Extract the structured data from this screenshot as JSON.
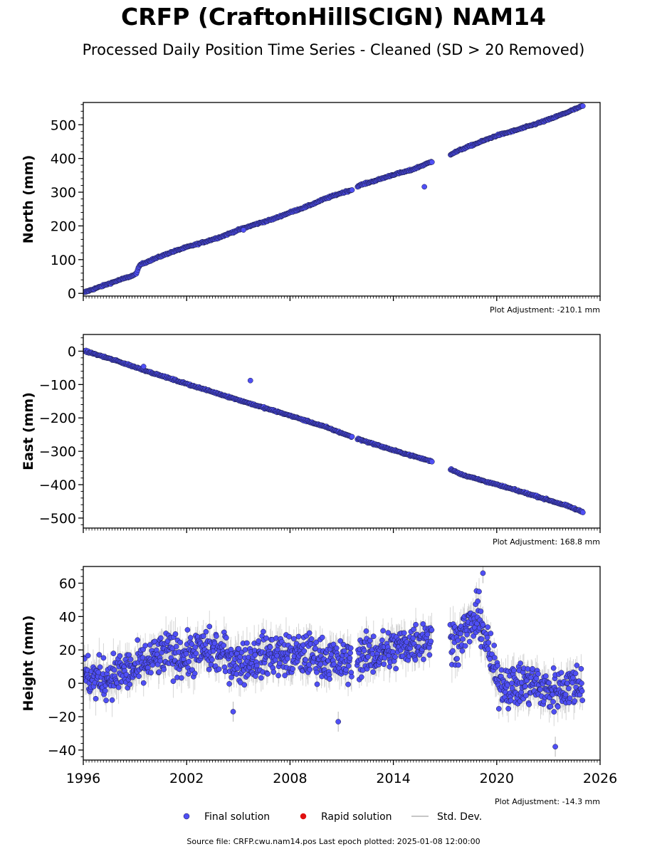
{
  "title": "CRFP (CraftonHillSCIGN) NAM14",
  "subtitle": "Processed Daily Position Time Series - Cleaned (SD > 20 Removed)",
  "footer": "Source file: CRFP.cwu.nam14.pos  Last epoch plotted: 2025-01-08 12:00:00",
  "colors": {
    "final": "#4f4ff5",
    "final_edge": "#1a1a40",
    "rapid": "#e01010",
    "stddev": "#b4b4b4",
    "axis": "#000000"
  },
  "legend": [
    {
      "label": "Final solution",
      "marker": "circle",
      "color": "#4f4ff5"
    },
    {
      "label": "Rapid solution",
      "marker": "circle",
      "color": "#e01010"
    },
    {
      "label": "Std. Dev.",
      "marker": "line",
      "color": "#b4b4b4"
    }
  ],
  "chart_data": [
    {
      "type": "scatter",
      "ylabel": "North (mm)",
      "xlim": [
        1996,
        2026
      ],
      "ylim": [
        -8,
        566
      ],
      "yticks": [
        0,
        100,
        200,
        300,
        400,
        500
      ],
      "xticks": [
        "1996",
        "2002",
        "2008",
        "2014",
        "2020",
        "2026"
      ],
      "show_xtick_labels": false,
      "adjustment": "Plot Adjustment: -210.1 mm",
      "gaps": [
        [
          2011.6,
          2011.9
        ],
        [
          2016.25,
          2017.3
        ]
      ],
      "series": [
        {
          "x": [
            1996.0,
            1997.0,
            1998.0,
            1999.0,
            1999.1,
            1999.3,
            2000.0,
            2001.0,
            2002.0,
            2003.0,
            2004.0,
            2005.0,
            2006.0,
            2007.0,
            2008.0,
            2009.0,
            2010.0,
            2011.0,
            2011.6,
            2011.9,
            2012.0,
            2013.0,
            2014.0,
            2015.0,
            2016.2,
            2017.3,
            2018.0,
            2019.0,
            2020.0,
            2021.0,
            2022.0,
            2023.0,
            2024.0,
            2025.0
          ],
          "y": [
            2,
            20,
            38,
            55,
            62,
            85,
            100,
            120,
            137,
            152,
            168,
            188,
            205,
            220,
            240,
            258,
            280,
            298,
            307,
            315,
            320,
            335,
            352,
            365,
            390,
            412,
            428,
            448,
            468,
            482,
            498,
            515,
            535,
            556
          ]
        }
      ],
      "outliers": [
        [
          2015.8,
          316
        ],
        [
          2005.3,
          188
        ]
      ]
    },
    {
      "type": "scatter",
      "ylabel": "East (mm)",
      "xlim": [
        1996,
        2026
      ],
      "ylim": [
        -530,
        50
      ],
      "yticks": [
        0,
        -100,
        -200,
        -300,
        -400,
        -500
      ],
      "xticks": [
        "1996",
        "2002",
        "2008",
        "2014",
        "2020",
        "2026"
      ],
      "show_xtick_labels": false,
      "adjustment": "Plot Adjustment: 168.8 mm",
      "gaps": [
        [
          2011.6,
          2011.9
        ],
        [
          2016.25,
          2017.3
        ]
      ],
      "series": [
        {
          "x": [
            1996.0,
            1998.0,
            2000.0,
            2002.0,
            2004.0,
            2006.0,
            2008.0,
            2010.0,
            2011.6,
            2011.9,
            2014.0,
            2016.2,
            2017.3,
            2018.0,
            2020.0,
            2022.0,
            2024.0,
            2025.0
          ],
          "y": [
            2,
            -30,
            -65,
            -98,
            -130,
            -162,
            -193,
            -226,
            -257,
            -262,
            -297,
            -330,
            -353,
            -370,
            -400,
            -430,
            -462,
            -482
          ]
        }
      ],
      "outliers": [
        [
          2005.7,
          -88
        ],
        [
          1999.5,
          -46
        ]
      ]
    },
    {
      "type": "scatter",
      "ylabel": "Height (mm)",
      "xlim": [
        1996,
        2026
      ],
      "ylim": [
        -46,
        70
      ],
      "yticks": [
        60,
        40,
        20,
        0,
        -20,
        -40
      ],
      "xticks": [
        "1996",
        "2002",
        "2008",
        "2014",
        "2020",
        "2026"
      ],
      "show_xtick_labels": true,
      "adjustment": "Plot Adjustment: -14.3 mm",
      "gaps": [
        [
          2011.6,
          2011.9
        ],
        [
          2016.25,
          2017.3
        ]
      ],
      "series": [
        {
          "x": [
            1996.0,
            1997.0,
            1998.0,
            1999.0,
            2000.0,
            2001.0,
            2002.0,
            2003.0,
            2004.0,
            2005.0,
            2006.0,
            2007.0,
            2008.0,
            2009.0,
            2010.0,
            2011.0,
            2012.0,
            2013.0,
            2014.0,
            2015.0,
            2016.0,
            2017.5,
            2018.0,
            2018.5,
            2019.0,
            2019.5,
            2020.0,
            2021.0,
            2022.0,
            2023.0,
            2024.0,
            2025.0
          ],
          "y": [
            5,
            2,
            6,
            8,
            14,
            18,
            16,
            20,
            18,
            12,
            15,
            18,
            16,
            17,
            15,
            12,
            16,
            18,
            20,
            24,
            28,
            25,
            30,
            35,
            40,
            20,
            2,
            -2,
            0,
            -5,
            -2,
            0
          ]
        }
      ],
      "spread": 9,
      "outliers": [
        [
          2010.8,
          -23
        ],
        [
          2004.7,
          -17
        ],
        [
          2019.2,
          66
        ],
        [
          2023.4,
          -38
        ]
      ]
    }
  ]
}
